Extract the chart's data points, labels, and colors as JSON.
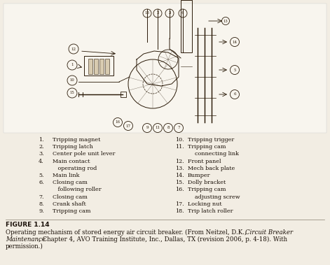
{
  "bg_color": "#f2ede3",
  "text_color": "#1a1008",
  "diagram_color": "#2a1a08",
  "fig_width": 4.71,
  "fig_height": 3.79,
  "dpi": 100,
  "legend_left": [
    [
      "1.",
      "Tripping magnet"
    ],
    [
      "2.",
      "Tripping latch"
    ],
    [
      "3.",
      "Center pole unit lever"
    ],
    [
      "4.",
      "Main contact"
    ],
    [
      "",
      "   operating rod"
    ],
    [
      "5.",
      "Main link"
    ],
    [
      "6.",
      "Closing cam"
    ],
    [
      "",
      "   following roller"
    ],
    [
      "7.",
      "Closing cam"
    ],
    [
      "8.",
      "Crank shaft"
    ],
    [
      "9.",
      "Tripping cam"
    ]
  ],
  "legend_right": [
    [
      "10.",
      "Tripping trigger"
    ],
    [
      "11.",
      "Tripping cam"
    ],
    [
      "",
      "    connecting link"
    ],
    [
      "12.",
      "Front panel"
    ],
    [
      "13.",
      "Mech back plate"
    ],
    [
      "14.",
      "Bumper"
    ],
    [
      "15.",
      "Dolly bracket"
    ],
    [
      "16.",
      "Tripping cam"
    ],
    [
      "",
      "    adjusting screw"
    ],
    [
      "17.",
      "Locking nut"
    ],
    [
      "18.",
      "Trip latch roller"
    ]
  ],
  "figure_label": "FIGURE 1.14",
  "caption_line1_normal": "Operating mechanism of stored energy air circuit breaker. (From Neitzel, D.K., ",
  "caption_line1_italic": "Circuit Breaker",
  "caption_line2_italic": "Maintenance",
  "caption_line2_normal": ", Chapter 4, AVO Training Institute, Inc., Dallas, TX (revision 2006, p. 4-18). With",
  "caption_line3": "permission.)"
}
